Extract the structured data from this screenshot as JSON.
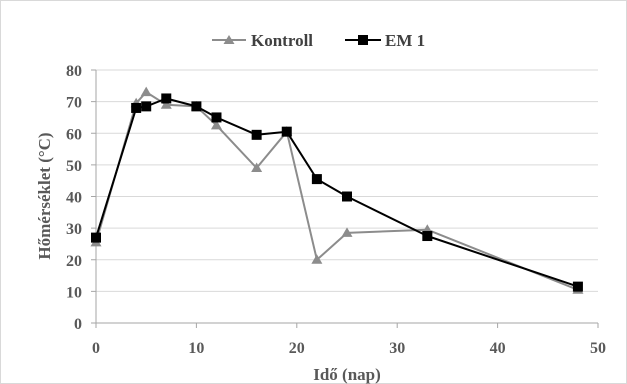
{
  "chart_data": {
    "type": "line",
    "xlabel": "Idő (nap)",
    "ylabel": "Hőmérséklet (°C)",
    "xlim": [
      0,
      50
    ],
    "ylim": [
      0,
      80
    ],
    "x_ticks": [
      0,
      10,
      20,
      30,
      40,
      50
    ],
    "y_ticks": [
      0,
      10,
      20,
      30,
      40,
      50,
      60,
      70,
      80
    ],
    "grid": "horizontal",
    "legend_position": "top",
    "series": [
      {
        "name": "Kontroll",
        "marker": "triangle",
        "color": "#8c8c8c",
        "points": [
          [
            0,
            25.5
          ],
          [
            4,
            69.5
          ],
          [
            5,
            73
          ],
          [
            7,
            69
          ],
          [
            10,
            68.5
          ],
          [
            12,
            62.5
          ],
          [
            16,
            49
          ],
          [
            19,
            60.5
          ],
          [
            22,
            20
          ],
          [
            25,
            28.5
          ],
          [
            33,
            29.5
          ],
          [
            48,
            10.5
          ]
        ]
      },
      {
        "name": "EM 1",
        "marker": "square",
        "color": "#000000",
        "points": [
          [
            0,
            27
          ],
          [
            4,
            68
          ],
          [
            5,
            68.5
          ],
          [
            7,
            71
          ],
          [
            10,
            68.5
          ],
          [
            12,
            65
          ],
          [
            16,
            59.5
          ],
          [
            19,
            60.5
          ],
          [
            22,
            45.5
          ],
          [
            25,
            40
          ],
          [
            33,
            27.5
          ],
          [
            48,
            11.5
          ]
        ]
      }
    ]
  }
}
